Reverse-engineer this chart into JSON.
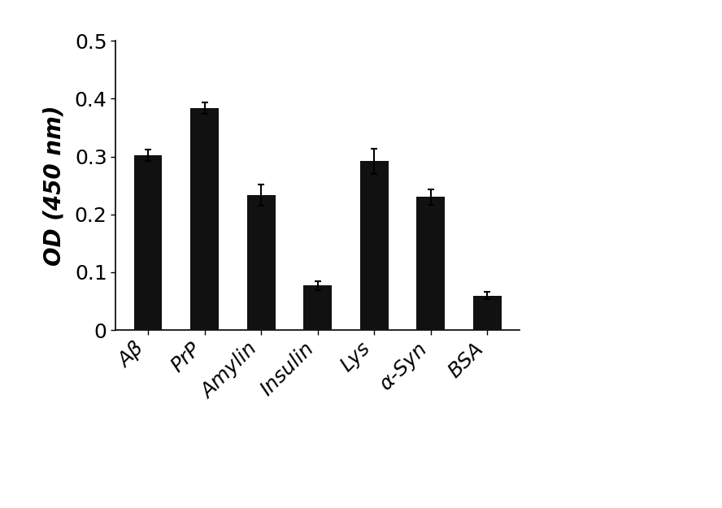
{
  "categories": [
    "Aβ",
    "PrP",
    "Amylin",
    "Insulin",
    "Lys",
    "α-Syn",
    "BSA"
  ],
  "values": [
    0.302,
    0.383,
    0.233,
    0.077,
    0.292,
    0.23,
    0.06
  ],
  "errors": [
    0.01,
    0.01,
    0.018,
    0.008,
    0.022,
    0.013,
    0.007
  ],
  "bar_color": "#111111",
  "bar_width": 0.5,
  "ylabel": "OD (450 nm)",
  "ylim": [
    0,
    0.5
  ],
  "yticks": [
    0,
    0.1,
    0.2,
    0.3,
    0.4,
    0.5
  ],
  "ytick_labels": [
    "0",
    "0.1",
    "0.2",
    "0.3",
    "0.4",
    "0.5"
  ],
  "background_color": "#ffffff",
  "ylabel_fontsize": 20,
  "tick_fontsize": 18,
  "xtick_fontsize": 18,
  "error_capsize": 3,
  "error_linewidth": 1.5
}
